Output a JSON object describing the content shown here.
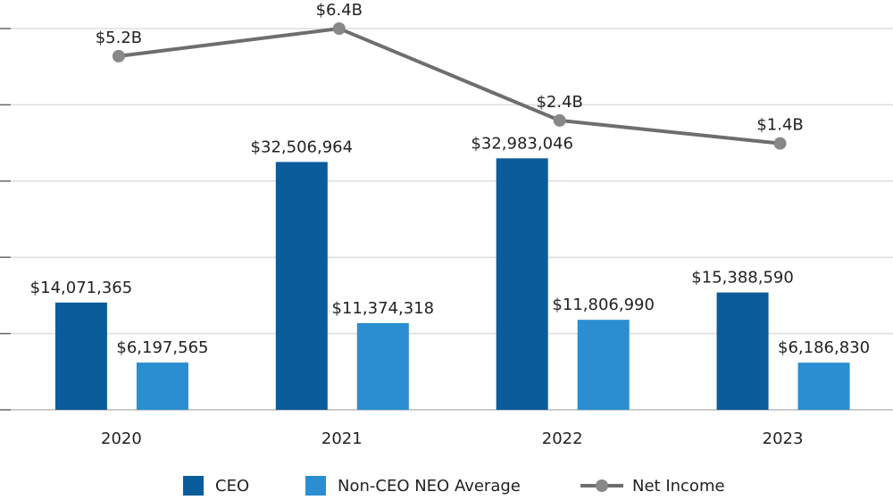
{
  "chart_data": {
    "type": "bar",
    "categories": [
      "2020",
      "2021",
      "2022",
      "2023"
    ],
    "series": [
      {
        "name": "CEO",
        "color": "#0b5c9b",
        "values": [
          14071365,
          32506964,
          32983046,
          15388590
        ],
        "value_labels": [
          "$14,071,365",
          "$32,506,964",
          "$32,983,046",
          "$15,388,590"
        ]
      },
      {
        "name": "Non-CEO NEO Average",
        "color": "#2a8ed0",
        "values": [
          6197565,
          11374318,
          11806990,
          6186830
        ],
        "value_labels": [
          "$6,197,565",
          "$11,374,318",
          "$11,806,990",
          "$6,186,830"
        ]
      },
      {
        "name": "Net Income",
        "type": "line",
        "axis": "y2",
        "color": "#6e6e6e",
        "values": [
          5.2,
          6.4,
          2.4,
          1.4
        ],
        "value_labels": [
          "$5.2B",
          "$6.4B",
          "$2.4B",
          "$1.4B"
        ]
      }
    ],
    "ylim": [
      0,
      50000000
    ],
    "yticks": [
      0,
      10000000,
      20000000,
      30000000,
      40000000,
      50000000
    ],
    "y2lim": [
      -10.2,
      6.4
    ],
    "grid": true,
    "legend": "bottom"
  }
}
